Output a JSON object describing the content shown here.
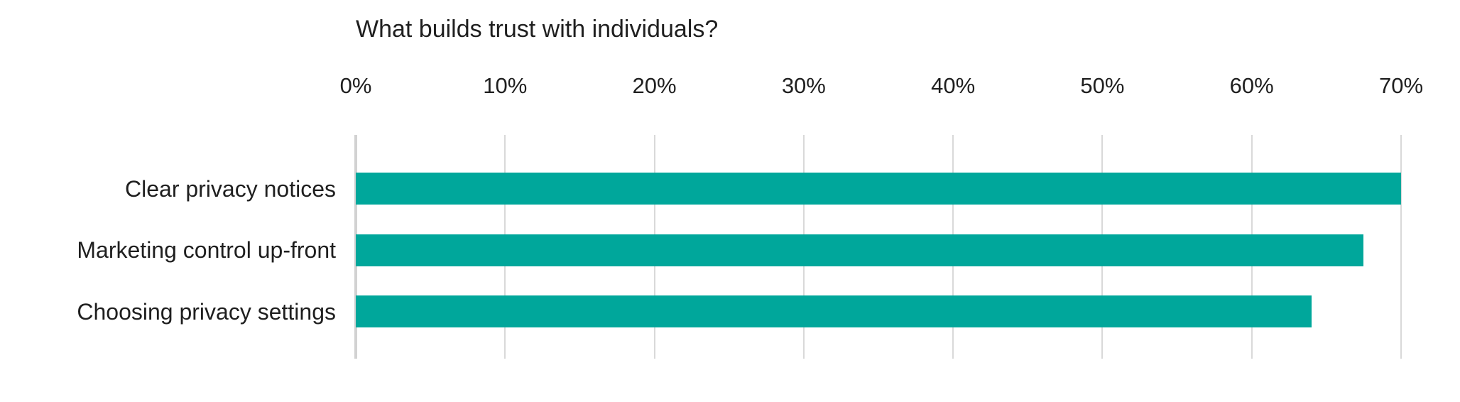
{
  "chart_data": {
    "type": "bar",
    "orientation": "horizontal",
    "title": "What builds trust with individuals?",
    "categories": [
      "Clear privacy notices",
      "Marketing control up-front",
      "Choosing privacy settings"
    ],
    "values": [
      70,
      67.5,
      64
    ],
    "x_ticks": [
      "0%",
      "10%",
      "20%",
      "30%",
      "40%",
      "50%",
      "60%",
      "70%"
    ],
    "x_tick_values": [
      0,
      10,
      20,
      30,
      40,
      50,
      60,
      70
    ],
    "xlim": [
      0,
      70
    ],
    "xlabel": "",
    "ylabel": "",
    "grid": true,
    "legend": false,
    "value_labels": false
  },
  "colors": {
    "bar": "#00a79b",
    "gridline": "#d9d9d9",
    "axis_line": "#d2d2d2",
    "text": "#1f1f1f",
    "background": "#ffffff"
  }
}
